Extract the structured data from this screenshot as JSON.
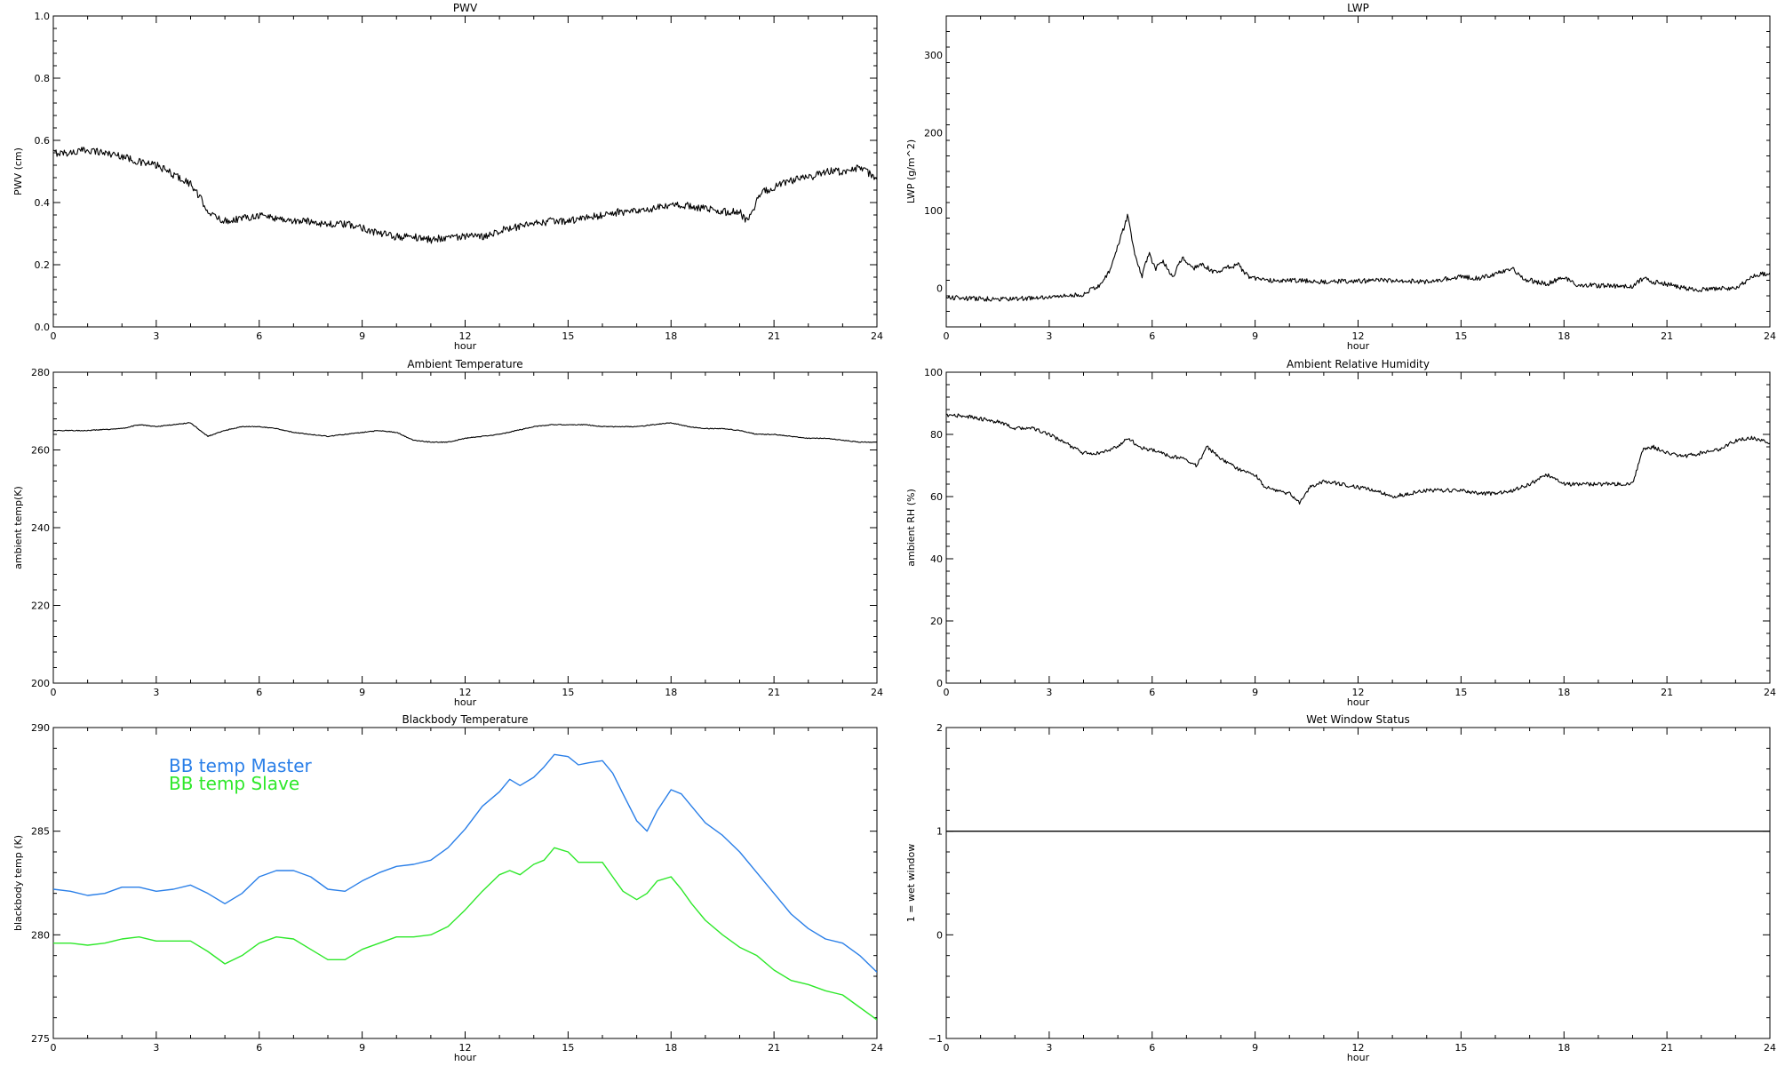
{
  "page": {
    "background": "#ffffff",
    "axis_color": "#000000"
  },
  "chart_data": [
    {
      "id": "pwv",
      "type": "line",
      "title": "PWV",
      "xlabel": "hour",
      "ylabel": "PWV (cm)",
      "xlim": [
        0,
        24
      ],
      "ylim": [
        0,
        1
      ],
      "xticks": [
        0,
        3,
        6,
        9,
        12,
        15,
        18,
        21,
        24
      ],
      "yticks": [
        "0.0",
        "0.2",
        "0.4",
        "0.6",
        "0.8",
        "1.0"
      ],
      "ytick_values": [
        0,
        0.2,
        0.4,
        0.6,
        0.8,
        1.0
      ],
      "noise": 0.012,
      "series": [
        {
          "color": "#000000",
          "x": [
            0,
            0.5,
            1,
            1.5,
            2,
            2.5,
            3,
            3.5,
            4,
            4.3,
            4.6,
            5,
            5.5,
            6,
            6.5,
            7,
            7.5,
            8,
            8.5,
            9,
            9.5,
            10,
            10.5,
            11,
            11.5,
            12,
            12.5,
            13,
            13.5,
            14,
            14.5,
            15,
            15.5,
            16,
            16.5,
            17,
            17.5,
            18,
            18.5,
            19,
            19.5,
            20,
            20.2,
            20.4,
            20.6,
            21,
            21.5,
            22,
            22.5,
            23,
            23.5,
            24
          ],
          "y": [
            0.56,
            0.56,
            0.57,
            0.56,
            0.55,
            0.53,
            0.52,
            0.49,
            0.46,
            0.41,
            0.36,
            0.34,
            0.35,
            0.36,
            0.35,
            0.34,
            0.34,
            0.33,
            0.33,
            0.32,
            0.3,
            0.29,
            0.29,
            0.28,
            0.29,
            0.29,
            0.29,
            0.31,
            0.32,
            0.33,
            0.34,
            0.34,
            0.35,
            0.36,
            0.37,
            0.37,
            0.38,
            0.39,
            0.39,
            0.38,
            0.37,
            0.37,
            0.34,
            0.38,
            0.43,
            0.45,
            0.47,
            0.48,
            0.5,
            0.5,
            0.51,
            0.48
          ]
        }
      ]
    },
    {
      "id": "lwp",
      "type": "line",
      "title": "LWP",
      "xlabel": "hour",
      "ylabel": "LWP (g/m^2)",
      "xlim": [
        0,
        24
      ],
      "ylim": [
        -50,
        350
      ],
      "xticks": [
        0,
        3,
        6,
        9,
        12,
        15,
        18,
        21,
        24
      ],
      "yticks": [
        "0",
        "100",
        "200",
        "300"
      ],
      "ytick_values": [
        0,
        100,
        200,
        300
      ],
      "noise": 3,
      "series": [
        {
          "color": "#000000",
          "x": [
            0,
            1,
            2,
            3,
            3.5,
            4,
            4.5,
            4.8,
            5,
            5.2,
            5.3,
            5.5,
            5.7,
            5.9,
            6.1,
            6.3,
            6.6,
            6.9,
            7.2,
            7.5,
            7.8,
            8.1,
            8.5,
            8.8,
            9.2,
            10,
            11,
            12,
            13,
            14,
            15,
            15.5,
            16,
            16.5,
            16.8,
            17,
            17.5,
            18,
            18.3,
            19,
            20,
            20.3,
            20.6,
            21,
            21.5,
            22,
            23,
            23.5,
            24
          ],
          "y": [
            -12,
            -14,
            -14,
            -12,
            -10,
            -8,
            5,
            25,
            55,
            80,
            95,
            40,
            15,
            45,
            25,
            35,
            15,
            40,
            25,
            30,
            20,
            25,
            30,
            15,
            10,
            10,
            8,
            9,
            10,
            8,
            15,
            12,
            18,
            25,
            12,
            10,
            5,
            15,
            5,
            3,
            2,
            12,
            8,
            5,
            0,
            -2,
            0,
            15,
            20
          ]
        }
      ]
    },
    {
      "id": "ambient-temp",
      "type": "line",
      "title": "Ambient Temperature",
      "xlabel": "hour",
      "ylabel": "ambient temp(K)",
      "xlim": [
        0,
        24
      ],
      "ylim": [
        200,
        280
      ],
      "xticks": [
        0,
        3,
        6,
        9,
        12,
        15,
        18,
        21,
        24
      ],
      "yticks": [
        "200",
        "220",
        "240",
        "260",
        "280"
      ],
      "ytick_values": [
        200,
        220,
        240,
        260,
        280
      ],
      "noise": 0.1,
      "series": [
        {
          "color": "#000000",
          "x": [
            0,
            1,
            2,
            2.5,
            3,
            3.5,
            4,
            4.5,
            5,
            5.5,
            6,
            6.5,
            7,
            7.5,
            8,
            8.5,
            9,
            9.5,
            10,
            10.5,
            11,
            11.5,
            12,
            12.5,
            13,
            13.5,
            14,
            14.5,
            15,
            15.5,
            16,
            16.5,
            17,
            17.5,
            18,
            18.5,
            19,
            19.5,
            20,
            20.5,
            21,
            21.5,
            22,
            22.5,
            23,
            23.5,
            24
          ],
          "y": [
            265,
            265,
            265.5,
            266.5,
            266,
            266.5,
            267,
            263.5,
            265,
            266,
            266,
            265.5,
            264.5,
            264,
            263.5,
            264,
            264.5,
            265,
            264.5,
            262.5,
            262,
            262,
            263,
            263.5,
            264,
            265,
            266,
            266.5,
            266.5,
            266.5,
            266,
            266,
            266,
            266.5,
            267,
            266,
            265.5,
            265.5,
            265,
            264,
            264,
            263.5,
            263,
            263,
            262.5,
            262,
            262
          ]
        }
      ]
    },
    {
      "id": "ambient-rh",
      "type": "line",
      "title": "Ambient Relative Humidity",
      "xlabel": "hour",
      "ylabel": "ambient RH (%)",
      "xlim": [
        0,
        24
      ],
      "ylim": [
        0,
        100
      ],
      "xticks": [
        0,
        3,
        6,
        9,
        12,
        15,
        18,
        21,
        24
      ],
      "yticks": [
        "0",
        "20",
        "40",
        "60",
        "80",
        "100"
      ],
      "ytick_values": [
        0,
        20,
        40,
        60,
        80,
        100
      ],
      "noise": 0.6,
      "series": [
        {
          "color": "#000000",
          "x": [
            0,
            0.5,
            1,
            1.5,
            2,
            2.5,
            3,
            3.5,
            4,
            4.5,
            5,
            5.3,
            5.6,
            6,
            6.5,
            7,
            7.3,
            7.6,
            8,
            8.5,
            9,
            9.3,
            9.6,
            10,
            10.3,
            10.6,
            11,
            11.5,
            12,
            12.5,
            13,
            13.5,
            14,
            14.5,
            15,
            15.5,
            16,
            16.5,
            17,
            17.5,
            18,
            18.5,
            19,
            19.5,
            20,
            20.3,
            20.6,
            21,
            21.5,
            22,
            22.5,
            23,
            23.5,
            24
          ],
          "y": [
            86,
            86,
            85,
            84,
            82,
            82,
            80,
            77,
            74,
            74,
            76,
            79,
            76,
            75,
            73,
            72,
            70,
            76,
            72,
            69,
            67,
            63,
            62,
            61,
            58,
            63,
            65,
            64,
            63,
            62,
            60,
            61,
            62,
            62,
            62,
            61,
            61,
            62,
            64,
            67,
            64,
            64,
            64,
            64,
            64,
            75,
            76,
            74,
            73,
            74,
            75,
            78,
            79,
            77
          ]
        }
      ]
    },
    {
      "id": "blackbody-temp",
      "type": "line",
      "title": "Blackbody Temperature",
      "xlabel": "hour",
      "ylabel": "blackbody temp (K)",
      "xlim": [
        0,
        24
      ],
      "ylim": [
        275,
        290
      ],
      "xticks": [
        0,
        3,
        6,
        9,
        12,
        15,
        18,
        21,
        24
      ],
      "yticks": [
        "275",
        "280",
        "285",
        "290"
      ],
      "ytick_values": [
        275,
        280,
        285,
        290
      ],
      "noise": 0,
      "legend": "top-left",
      "series": [
        {
          "name": "BB temp Master",
          "color": "#2a7fe8",
          "x": [
            0,
            0.5,
            1,
            1.5,
            2,
            2.5,
            3,
            3.5,
            4,
            4.5,
            5,
            5.5,
            6,
            6.5,
            7,
            7.5,
            8,
            8.5,
            9,
            9.5,
            10,
            10.5,
            11,
            11.5,
            12,
            12.5,
            13,
            13.3,
            13.6,
            14,
            14.3,
            14.6,
            15,
            15.3,
            15.6,
            16,
            16.3,
            16.6,
            17,
            17.3,
            17.6,
            18,
            18.3,
            18.6,
            19,
            19.5,
            20,
            20.5,
            21,
            21.5,
            22,
            22.5,
            23,
            23.5,
            24
          ],
          "y": [
            282.2,
            282.1,
            281.9,
            282,
            282.3,
            282.3,
            282.1,
            282.2,
            282.4,
            282,
            281.5,
            282,
            282.8,
            283.1,
            283.1,
            282.8,
            282.2,
            282.1,
            282.6,
            283,
            283.3,
            283.4,
            283.6,
            284.2,
            285.1,
            286.2,
            286.9,
            287.5,
            287.2,
            287.6,
            288.1,
            288.7,
            288.6,
            288.2,
            288.3,
            288.4,
            287.8,
            286.8,
            285.5,
            285,
            286,
            287,
            286.8,
            286.2,
            285.4,
            284.8,
            284,
            283,
            282,
            281,
            280.3,
            279.8,
            279.6,
            279,
            278.2
          ]
        },
        {
          "name": "BB temp Slave",
          "color": "#2ee82a",
          "x": [
            0,
            0.5,
            1,
            1.5,
            2,
            2.5,
            3,
            3.5,
            4,
            4.5,
            5,
            5.5,
            6,
            6.5,
            7,
            7.5,
            8,
            8.5,
            9,
            9.5,
            10,
            10.5,
            11,
            11.5,
            12,
            12.5,
            13,
            13.3,
            13.6,
            14,
            14.3,
            14.6,
            15,
            15.3,
            15.6,
            16,
            16.3,
            16.6,
            17,
            17.3,
            17.6,
            18,
            18.3,
            18.6,
            19,
            19.5,
            20,
            20.5,
            21,
            21.5,
            22,
            22.5,
            23,
            23.5,
            24
          ],
          "y": [
            279.6,
            279.6,
            279.5,
            279.6,
            279.8,
            279.9,
            279.7,
            279.7,
            279.7,
            279.2,
            278.6,
            279,
            279.6,
            279.9,
            279.8,
            279.3,
            278.8,
            278.8,
            279.3,
            279.6,
            279.9,
            279.9,
            280,
            280.4,
            281.2,
            282.1,
            282.9,
            283.1,
            282.9,
            283.4,
            283.6,
            284.2,
            284,
            283.5,
            283.5,
            283.5,
            282.8,
            282.1,
            281.7,
            282,
            282.6,
            282.8,
            282.2,
            281.5,
            280.7,
            280,
            279.4,
            279,
            278.3,
            277.8,
            277.6,
            277.3,
            277.1,
            276.5,
            275.9
          ]
        }
      ]
    },
    {
      "id": "wet-window",
      "type": "line",
      "title": "Wet Window Status",
      "xlabel": "hour",
      "ylabel": "1 = wet window",
      "xlim": [
        0,
        24
      ],
      "ylim": [
        -1,
        2
      ],
      "xticks": [
        0,
        3,
        6,
        9,
        12,
        15,
        18,
        21,
        24
      ],
      "yticks": [
        "−1",
        "0",
        "1",
        "2"
      ],
      "ytick_values": [
        -1,
        0,
        1,
        2
      ],
      "noise": 0,
      "series": [
        {
          "color": "#000000",
          "x": [
            0,
            24
          ],
          "y": [
            1,
            1
          ]
        }
      ]
    }
  ]
}
